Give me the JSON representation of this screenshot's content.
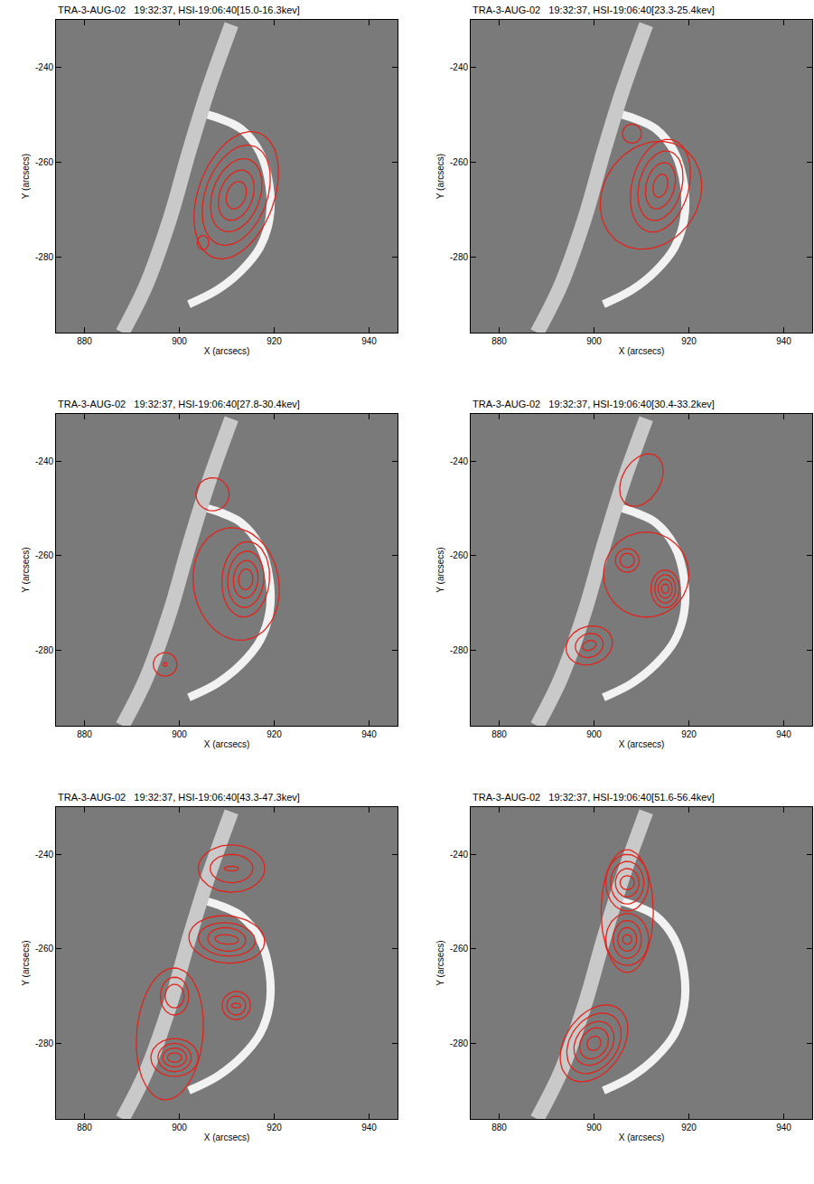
{
  "chart_data": {
    "type": "contour",
    "x_label": "X (arcsecs)",
    "y_label": "Y (arcsecs)",
    "xlim": [
      874,
      946
    ],
    "ylim": [
      -296,
      -230
    ],
    "xticks": [
      880,
      900,
      920,
      940
    ],
    "yticks": [
      -280,
      -260,
      -240
    ],
    "color": "#e3231b",
    "arcade": {
      "x": [
        911,
        906,
        902,
        898,
        893,
        888
      ],
      "y": [
        -231,
        -245,
        -258,
        -272,
        -286,
        -296
      ]
    },
    "loop": {
      "x": [
        906,
        909,
        913,
        917,
        919,
        919,
        917,
        913,
        908,
        902
      ],
      "y": [
        -250,
        -251,
        -253,
        -258,
        -265,
        -272,
        -278,
        -283,
        -287,
        -290
      ]
    },
    "panels": [
      {
        "title": "TRA-3-AUG-02   19:32:37, HSI-19:06:40[15.0-16.3kev]",
        "contours": [
          {
            "x": 912,
            "y": -267,
            "rx": [
              8,
              6.5,
              5,
              3.5,
              2
            ],
            "ry": [
              14,
              11,
              8,
              5.5,
              3
            ],
            "angle": -20
          },
          {
            "x": 905,
            "y": -277,
            "rx": [
              1.2
            ],
            "ry": [
              1.5
            ],
            "angle": 0
          }
        ]
      },
      {
        "title": "TRA-3-AUG-02   19:32:37, HSI-19:06:40[23.3-25.4kev]",
        "contours": [
          {
            "x": 908,
            "y": -254,
            "rx": [
              2
            ],
            "ry": [
              2
            ],
            "angle": 0
          },
          {
            "x": 912,
            "y": -267,
            "rx": [
              10
            ],
            "ry": [
              12
            ],
            "angle": -35
          },
          {
            "x": 914,
            "y": -265,
            "rx": [
              6,
              4.5,
              3,
              1.5
            ],
            "ry": [
              10,
              7.5,
              5,
              2.5
            ],
            "angle": -15
          }
        ]
      },
      {
        "title": "TRA-3-AUG-02   19:32:37, HSI-19:06:40[27.8-30.4kev]",
        "contours": [
          {
            "x": 907,
            "y": -247,
            "rx": [
              3.5
            ],
            "ry": [
              3.5
            ],
            "angle": 0
          },
          {
            "x": 912,
            "y": -266,
            "rx": [
              9
            ],
            "ry": [
              12
            ],
            "angle": 10
          },
          {
            "x": 914,
            "y": -265,
            "rx": [
              5,
              3.8,
              2.6,
              1.5
            ],
            "ry": [
              8,
              6,
              4,
              2.2
            ],
            "angle": -5
          },
          {
            "x": 897,
            "y": -283,
            "rx": [
              2.5,
              0.4
            ],
            "ry": [
              2.5,
              0.4
            ],
            "angle": 0
          }
        ]
      },
      {
        "title": "TRA-3-AUG-02   19:32:37, HSI-19:06:40[30.4-33.2kev]",
        "contours": [
          {
            "x": 910,
            "y": -244,
            "rx": [
              4
            ],
            "ry": [
              6
            ],
            "angle": -30
          },
          {
            "x": 911,
            "y": -264,
            "rx": [
              9
            ],
            "ry": [
              9
            ],
            "angle": 0
          },
          {
            "x": 907,
            "y": -261,
            "rx": [
              2.5,
              1.5
            ],
            "ry": [
              2.5,
              1.5
            ],
            "angle": 0
          },
          {
            "x": 915,
            "y": -267,
            "rx": [
              3,
              2.2,
              1.5,
              0.8
            ],
            "ry": [
              4,
              3,
              2,
              1
            ],
            "angle": 0
          },
          {
            "x": 899,
            "y": -279,
            "rx": [
              5,
              3,
              1.5
            ],
            "ry": [
              4,
              2.5,
              1
            ],
            "angle": 20
          }
        ]
      },
      {
        "title": "TRA-3-AUG-02   19:32:37, HSI-19:06:40[43.3-47.3kev]",
        "contours": [
          {
            "x": 911,
            "y": -243,
            "rx": [
              7,
              4.5,
              1.5
            ],
            "ry": [
              5,
              3,
              0.5
            ],
            "angle": 0
          },
          {
            "x": 910,
            "y": -258,
            "rx": [
              8,
              6,
              4,
              2.5
            ],
            "ry": [
              5,
              3.5,
              2.5,
              1
            ],
            "angle": -5
          },
          {
            "x": 898,
            "y": -278,
            "rx": [
              7
            ],
            "ry": [
              14
            ],
            "angle": -5
          },
          {
            "x": 899,
            "y": -270,
            "rx": [
              3,
              2
            ],
            "ry": [
              4,
              2.5
            ],
            "angle": 0
          },
          {
            "x": 899,
            "y": -283,
            "rx": [
              5,
              3.5,
              2.5,
              1.5
            ],
            "ry": [
              4,
              3,
              2,
              1
            ],
            "angle": 0
          },
          {
            "x": 912,
            "y": -272,
            "rx": [
              3,
              2,
              1
            ],
            "ry": [
              3,
              2,
              0.5
            ],
            "angle": 0
          }
        ]
      },
      {
        "title": "TRA-3-AUG-02   19:32:37, HSI-19:06:40[51.6-56.4kev]",
        "contours": [
          {
            "x": 907,
            "y": -252,
            "rx": [
              5.5
            ],
            "ry": [
              13
            ],
            "angle": 0
          },
          {
            "x": 907,
            "y": -246,
            "rx": [
              4.5,
              3.5,
              2.5,
              1.5
            ],
            "ry": [
              6,
              4.5,
              3,
              1.5
            ],
            "angle": 0
          },
          {
            "x": 907,
            "y": -258,
            "rx": [
              4.5,
              3,
              2,
              1
            ],
            "ry": [
              5.5,
              4,
              2.5,
              1
            ],
            "angle": 0
          },
          {
            "x": 900,
            "y": -280,
            "rx": [
              6,
              5,
              3.8,
              2.8,
              1.4
            ],
            "ry": [
              9,
              7,
              5,
              3.5,
              1.6
            ],
            "angle": -35
          }
        ]
      }
    ]
  }
}
